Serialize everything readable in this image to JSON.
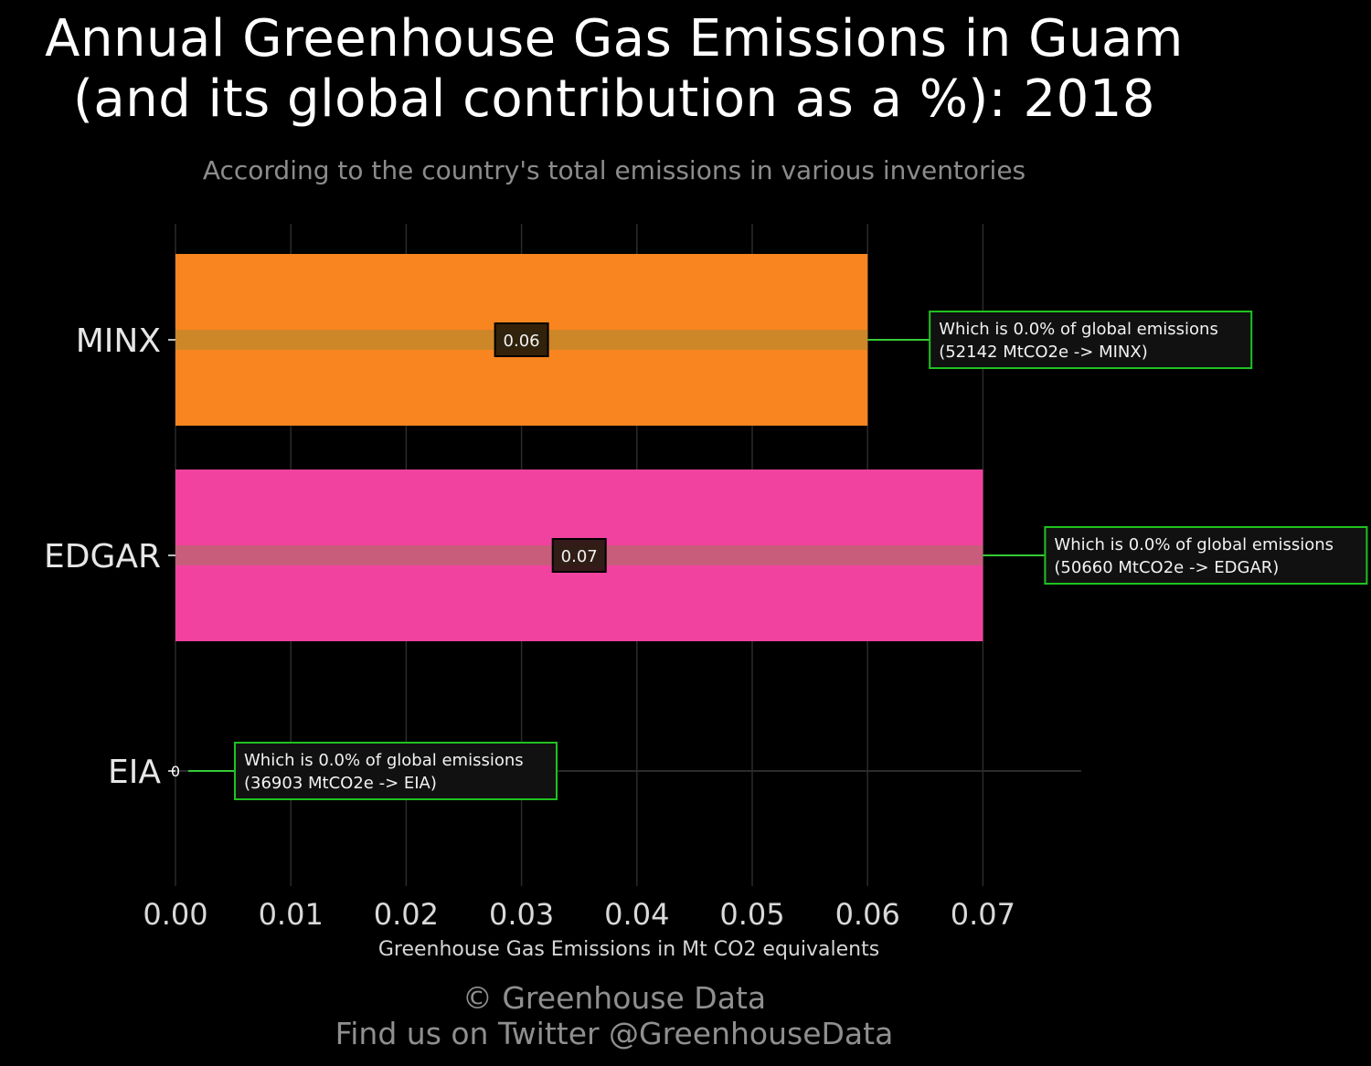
{
  "title_line1": "Annual Greenhouse Gas Emissions in Guam",
  "title_line2": "(and its global contribution as a %): 2018",
  "subtitle": "According to the country's total emissions in various inventories",
  "footer": {
    "credit": "© Greenhouse Data",
    "twitter": "Find us on Twitter @GreenhouseData"
  },
  "chart_data": {
    "type": "bar",
    "orientation": "horizontal",
    "title": "Annual Greenhouse Gas Emissions in Guam (and its global contribution as a %): 2018",
    "subtitle": "According to the country's total emissions in various inventories",
    "xlabel": "Greenhouse Gas Emissions in Mt CO2 equivalents",
    "ylabel": "",
    "xlim": [
      0,
      0.078
    ],
    "xticks": [
      0.0,
      0.01,
      0.02,
      0.03,
      0.04,
      0.05,
      0.06,
      0.07
    ],
    "xtick_labels": [
      "0.00",
      "0.01",
      "0.02",
      "0.03",
      "0.04",
      "0.05",
      "0.06",
      "0.07"
    ],
    "grid": true,
    "categories": [
      "MINX",
      "EDGAR",
      "EIA"
    ],
    "values": [
      0.06,
      0.07,
      0
    ],
    "value_labels": [
      "0.06",
      "0.07",
      "0"
    ],
    "colors": [
      "#f98520",
      "#f2429f",
      "#1a1a1a"
    ],
    "annotations": [
      {
        "line1": "Which is 0.0% of global emissions",
        "line2": "(52142 MtCO2e -> MINX)"
      },
      {
        "line1": "Which is 0.0% of global emissions",
        "line2": "(50660 MtCO2e -> EDGAR)"
      },
      {
        "line1": "Which is 0.0% of global emissions",
        "line2": "(36903 MtCO2e -> EIA)"
      }
    ]
  },
  "colors": {
    "background": "#000000",
    "grid": "#2b2b2b",
    "annotation_border": "#1fc21f",
    "annotation_fill": "#111111",
    "connector": "#39ff39"
  }
}
